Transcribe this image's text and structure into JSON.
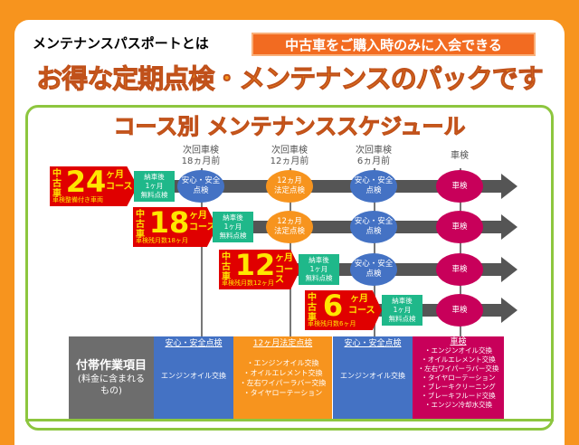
{
  "header": {
    "intro": "メンテナンスパスポートとは",
    "badge": "中古車をご購入時のみに入会できる",
    "headline": "お得な定期点検・メンテナンスのパックです"
  },
  "schedule": {
    "title": "コース別 メンテナンススケジュール",
    "columns": [
      "次回車検\n18ヵ月前",
      "次回車検\n12ヵ月前",
      "次回車検\n6ヵ月前",
      "車検"
    ],
    "used_car": "中古車",
    "month_unit": "ヶ月",
    "course_unit": "コース",
    "courses": [
      {
        "months": "24",
        "note": "車検整備付き車両"
      },
      {
        "months": "18",
        "note": "車検残月数18ヶ月"
      },
      {
        "months": "12",
        "note": "車検残月数12ヶ月"
      },
      {
        "months": "6",
        "note": "車検残月数6ヶ月"
      }
    ],
    "free_check": "納車後\n1ヶ月\n無料点検",
    "safety_check": "安心・安全\n点検",
    "legal_check": "12ヵ月\n法定点検",
    "shaken": "車検"
  },
  "table": {
    "label": "付帯作業項目",
    "label_sub": "(料金に含まれる\nもの)",
    "cols": [
      {
        "head": "安心・安全点検",
        "body": "エンジンオイル交換"
      },
      {
        "head": "12ヶ月法定点検",
        "body": "・エンジンオイル交換\n・オイルエレメント交換\n・左右ワイパーラバー交換\n・タイヤローテーション"
      },
      {
        "head": "安心・安全点検",
        "body": "エンジンオイル交換"
      },
      {
        "head": "車検",
        "body": "・エンジンオイル交換\n・オイルエレメント交換\n・左右ワイパーラバー交換\n・タイヤローテーション\n・ブレーキクリーニング\n・ブレーキフルード交換\n・エンジン冷却水交換"
      }
    ]
  },
  "colors": {
    "background": "#F7941E",
    "panel_border": "#8DC63F",
    "course": "#E00000",
    "free_check": "#1FB88A",
    "safety": "#4472C4",
    "legal": "#F7941E",
    "shaken": "#C8005A"
  }
}
